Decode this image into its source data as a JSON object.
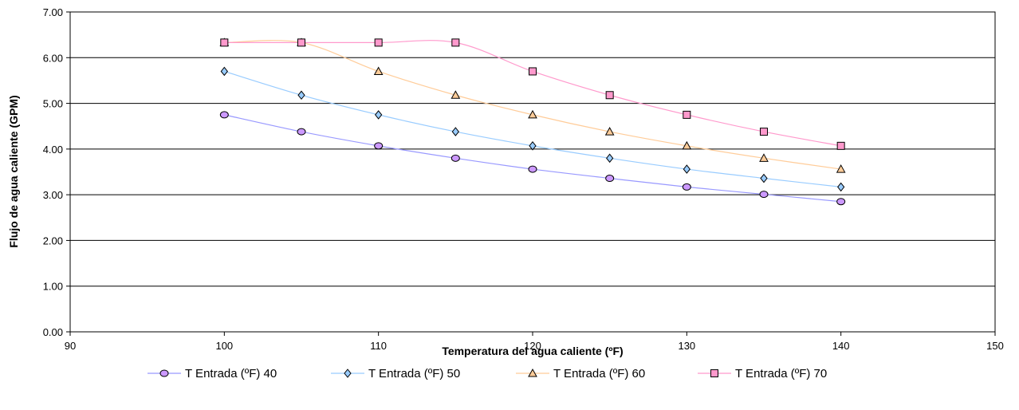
{
  "chart_data": {
    "type": "scatter",
    "xlabel": "Temperatura del agua caliente (ºF)",
    "ylabel": "Flujo de agua caliente (GPM)",
    "xlim": [
      90,
      150
    ],
    "ylim": [
      0,
      7
    ],
    "x_ticks": [
      "90",
      "100",
      "110",
      "120",
      "130",
      "140",
      "150"
    ],
    "y_ticks": [
      "0.00",
      "1.00",
      "2.00",
      "3.00",
      "4.00",
      "5.00",
      "6.00",
      "7.00"
    ],
    "grid": "horizontal",
    "legend_position": "bottom",
    "series": [
      {
        "name": "T Entrada (ºF) 40",
        "marker": "circle",
        "color": "#9999ff",
        "fill": "#cc99ff",
        "x": [
          100,
          105,
          110,
          115,
          120,
          125,
          130,
          135,
          140
        ],
        "y": [
          4.75,
          4.38,
          4.07,
          3.8,
          3.56,
          3.36,
          3.17,
          3.01,
          2.85
        ]
      },
      {
        "name": "T Entrada (ºF) 50",
        "marker": "diamond",
        "color": "#99ccff",
        "fill": "#99ccff",
        "x": [
          100,
          105,
          110,
          115,
          120,
          125,
          130,
          135,
          140
        ],
        "y": [
          5.7,
          5.18,
          4.75,
          4.38,
          4.07,
          3.8,
          3.56,
          3.36,
          3.17
        ]
      },
      {
        "name": "T Entrada (ºF) 60",
        "marker": "triangle",
        "color": "#ffcc99",
        "fill": "#ffcc99",
        "x": [
          100,
          105,
          110,
          115,
          120,
          125,
          130,
          135,
          140
        ],
        "y": [
          6.33,
          6.33,
          5.7,
          5.18,
          4.75,
          4.38,
          4.07,
          3.8,
          3.56
        ]
      },
      {
        "name": "T Entrada (ºF) 70",
        "marker": "square",
        "color": "#ff99cc",
        "fill": "#ff99cc",
        "x": [
          100,
          105,
          110,
          115,
          120,
          125,
          130,
          135,
          140
        ],
        "y": [
          6.33,
          6.33,
          6.33,
          6.33,
          5.7,
          5.18,
          4.75,
          4.38,
          4.07
        ]
      }
    ]
  }
}
